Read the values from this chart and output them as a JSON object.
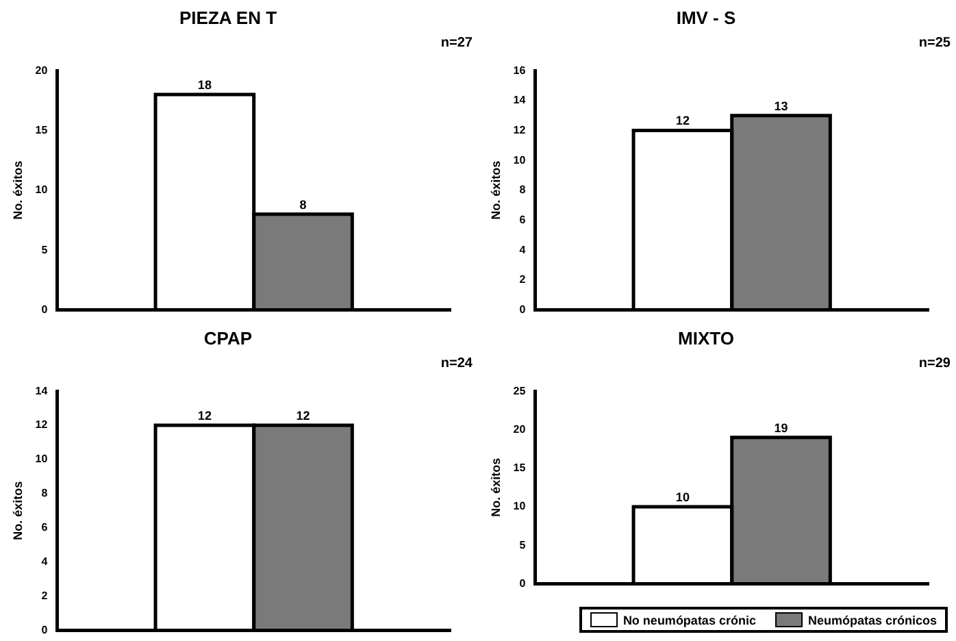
{
  "chart_data": [
    {
      "type": "bar",
      "title": "PIEZA EN T",
      "annotations": [
        "n=27"
      ],
      "ylabel": "No. éxitos",
      "categories": [
        null
      ],
      "series": [
        {
          "color": "#ffffff",
          "values": [
            18
          ]
        },
        {
          "color": "#7a7a7a",
          "values": [
            8
          ]
        }
      ],
      "ylim": [
        0,
        20
      ],
      "yticks": [
        0,
        5,
        10,
        15,
        20
      ],
      "grid": false,
      "legend": false,
      "tick_labels": "y",
      "data_labels": true
    },
    {
      "type": "bar",
      "title": "IMV - S",
      "annotations": [
        "n=25"
      ],
      "ylabel": "No. éxitos",
      "categories": [
        null
      ],
      "series": [
        {
          "color": "#ffffff",
          "values": [
            12
          ]
        },
        {
          "color": "#7a7a7a",
          "values": [
            13
          ]
        }
      ],
      "ylim": [
        0,
        16
      ],
      "yticks": [
        0,
        2,
        4,
        6,
        8,
        10,
        12,
        14,
        16
      ],
      "grid": false,
      "legend": false,
      "tick_labels": "y",
      "data_labels": true
    },
    {
      "type": "bar",
      "title": "CPAP",
      "annotations": [
        "n=24"
      ],
      "ylabel": "No. éxitos",
      "categories": [
        null
      ],
      "series": [
        {
          "color": "#ffffff",
          "values": [
            12
          ]
        },
        {
          "color": "#7a7a7a",
          "values": [
            12
          ]
        }
      ],
      "ylim": [
        0,
        14
      ],
      "yticks": [
        0,
        2,
        4,
        6,
        8,
        10,
        12,
        14
      ],
      "grid": false,
      "legend": false,
      "tick_labels": "y",
      "data_labels": true
    },
    {
      "type": "bar",
      "title": "MIXTO",
      "annotations": [
        "n=29"
      ],
      "ylabel": "No. éxitos",
      "categories": [
        null
      ],
      "series": [
        {
          "name": "No neumópatas crónic",
          "color": "#ffffff",
          "values": [
            10
          ]
        },
        {
          "name": "Neumópatas crónicos",
          "color": "#7a7a7a",
          "values": [
            19
          ]
        }
      ],
      "ylim": [
        0,
        25
      ],
      "yticks": [
        0,
        5,
        10,
        15,
        20,
        25
      ],
      "grid": false,
      "legend": "bottom",
      "tick_labels": "y",
      "data_labels": true
    }
  ]
}
